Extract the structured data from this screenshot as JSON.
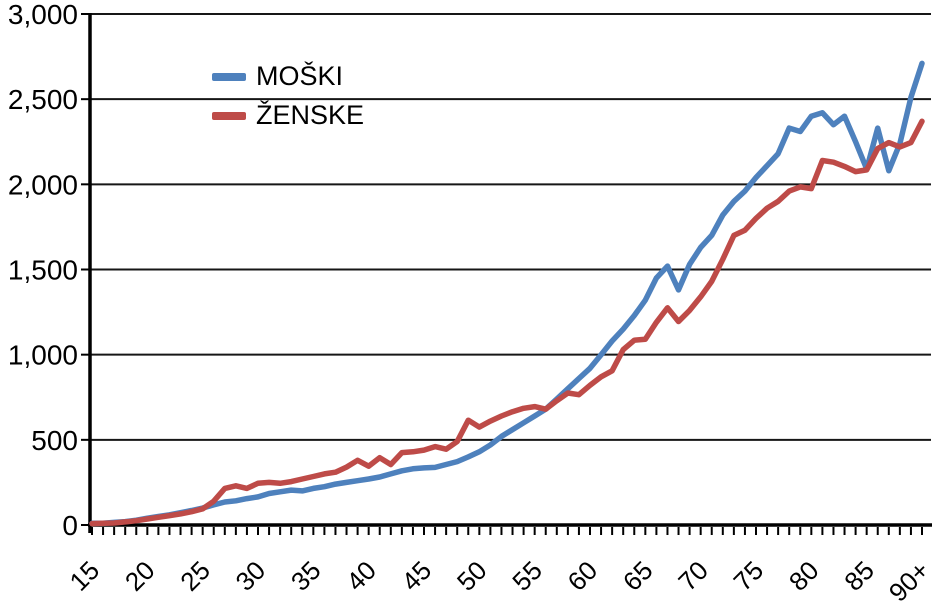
{
  "chart_data": {
    "type": "line",
    "title": "",
    "xlabel": "",
    "ylabel": "",
    "grid": "horizontal",
    "legend_position": "top-left-inside",
    "axis_color": "#000000",
    "x": [
      15,
      16,
      17,
      18,
      19,
      20,
      21,
      22,
      23,
      24,
      25,
      26,
      27,
      28,
      29,
      30,
      31,
      32,
      33,
      34,
      35,
      36,
      37,
      38,
      39,
      40,
      41,
      42,
      43,
      44,
      45,
      46,
      47,
      48,
      49,
      50,
      51,
      52,
      53,
      54,
      55,
      56,
      57,
      58,
      59,
      60,
      61,
      62,
      63,
      64,
      65,
      66,
      67,
      68,
      69,
      70,
      71,
      72,
      73,
      74,
      75,
      76,
      77,
      78,
      79,
      80,
      81,
      82,
      83,
      84,
      85,
      86,
      87,
      88,
      89,
      90
    ],
    "x_tick_positions": [
      15,
      20,
      25,
      30,
      35,
      40,
      45,
      50,
      55,
      60,
      65,
      70,
      75,
      80,
      85,
      90
    ],
    "x_tick_labels": [
      "15",
      "20",
      "25",
      "30",
      "35",
      "40",
      "45",
      "50",
      "55",
      "60",
      "65",
      "70",
      "75",
      "80",
      "85",
      "90+"
    ],
    "ylim": [
      0,
      3000
    ],
    "ytick_step": 500,
    "ytick_labels": [
      "0",
      "500",
      "1,000",
      "1,500",
      "2,000",
      "2,500",
      "3,000"
    ],
    "series": [
      {
        "name": "MOŠKI",
        "color": "#4E81BD",
        "values": [
          10,
          10,
          15,
          20,
          28,
          40,
          50,
          60,
          72,
          85,
          100,
          118,
          135,
          142,
          155,
          165,
          185,
          195,
          205,
          200,
          215,
          225,
          240,
          250,
          260,
          270,
          282,
          300,
          318,
          330,
          335,
          338,
          355,
          372,
          400,
          430,
          470,
          520,
          560,
          600,
          640,
          680,
          740,
          800,
          860,
          920,
          1000,
          1080,
          1150,
          1230,
          1320,
          1450,
          1520,
          1380,
          1530,
          1630,
          1700,
          1820,
          1900,
          1960,
          2040,
          2110,
          2180,
          2330,
          2310,
          2400,
          2420,
          2350,
          2400,
          2250,
          2090,
          2330,
          2080,
          2240,
          2510,
          2710
        ]
      },
      {
        "name": "ŽENSKE",
        "color": "#BE4B48",
        "values": [
          8,
          10,
          12,
          18,
          25,
          35,
          45,
          55,
          65,
          78,
          95,
          140,
          215,
          230,
          215,
          245,
          250,
          245,
          255,
          270,
          285,
          300,
          310,
          340,
          380,
          345,
          395,
          355,
          425,
          430,
          440,
          460,
          445,
          490,
          615,
          575,
          610,
          640,
          665,
          685,
          695,
          680,
          730,
          775,
          765,
          820,
          870,
          905,
          1030,
          1085,
          1090,
          1190,
          1275,
          1195,
          1260,
          1340,
          1430,
          1560,
          1700,
          1730,
          1800,
          1860,
          1900,
          1960,
          1985,
          1975,
          2140,
          2130,
          2105,
          2075,
          2085,
          2210,
          2245,
          2220,
          2245,
          2370
        ]
      }
    ]
  },
  "legend": {
    "items": [
      {
        "label": "MOŠKI"
      },
      {
        "label": "ŽENSKE"
      }
    ]
  }
}
